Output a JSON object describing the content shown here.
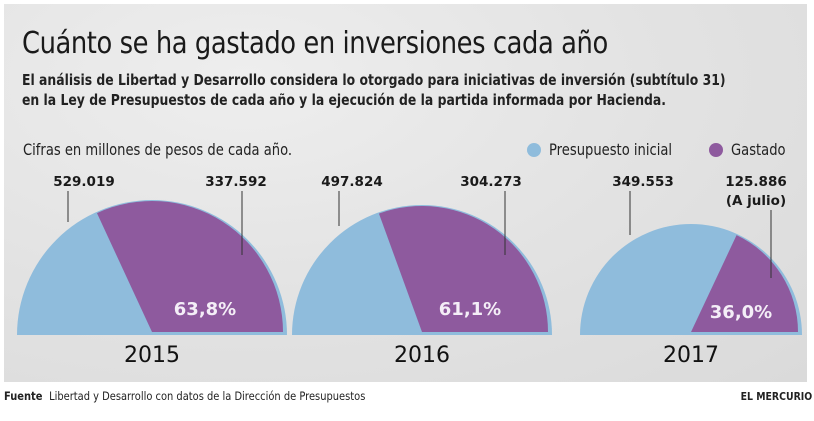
{
  "header": {
    "title": "Cuánto se ha gastado en inversiones cada año",
    "subtitle_line1": "El análisis de Libertad y Desarrollo considera lo otorgado para iniciativas de inversión (subtítulo 31)",
    "subtitle_line2": "en la Ley de Presupuestos de cada año y la ejecución de la partida informada por Hacienda."
  },
  "note": "Cifras en millones de pesos de cada año.",
  "legend": [
    {
      "label": "Presupuesto inicial",
      "color": "#8fbcdc"
    },
    {
      "label": "Gastado",
      "color": "#8e5a9e"
    }
  ],
  "footer": {
    "source_label": "Fuente",
    "source_text": "Libertad y Desarrollo con datos de la Dirección de Presupuestos",
    "brand": "EL MERCURIO"
  },
  "chart_data": {
    "type": "pie",
    "title": "Cuánto se ha gastado en inversiones cada año",
    "unit": "millones de pesos",
    "colors": {
      "presupuesto": "#8fbcdc",
      "gastado": "#8e5a9e"
    },
    "charts": [
      {
        "year": "2015",
        "presupuesto_inicial": "529.019",
        "gastado": "337.592",
        "gastado_note": "",
        "percent_spent": 63.8,
        "percent_label": "63,8%"
      },
      {
        "year": "2016",
        "presupuesto_inicial": "497.824",
        "gastado": "304.273",
        "gastado_note": "",
        "percent_spent": 61.1,
        "percent_label": "61,1%"
      },
      {
        "year": "2017",
        "presupuesto_inicial": "349.553",
        "gastado": "125.886",
        "gastado_note": "(A julio)",
        "percent_spent": 36.0,
        "percent_label": "36,0%"
      }
    ]
  }
}
